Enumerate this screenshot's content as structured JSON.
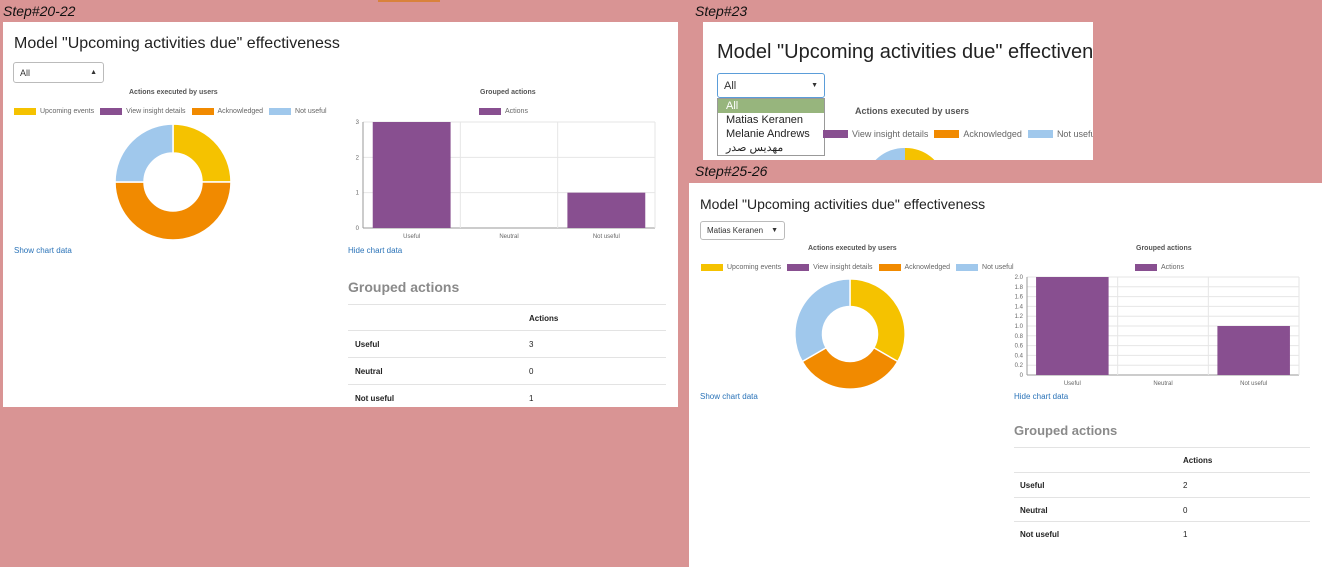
{
  "labels": {
    "step1": "Step#20-22",
    "step2": "Step#23",
    "step3": "Step#25-26"
  },
  "colors": {
    "upcoming": "#f5c200",
    "view": "#884f90",
    "ack": "#f18a00",
    "notuseful": "#a0c8ec",
    "bar": "#884f90",
    "link": "#2a73b8"
  },
  "panel1": {
    "title": "Model \"Upcoming activities due\" effectiveness",
    "select_value": "All",
    "donut_title": "Actions executed by users",
    "legend": [
      "Upcoming events",
      "View insight details",
      "Acknowledged",
      "Not useful"
    ],
    "show_link": "Show chart data",
    "bar_title": "Grouped actions",
    "bar_legend": "Actions",
    "hide_link": "Hide chart data",
    "grouped_title": "Grouped actions",
    "table_header": "Actions",
    "table_rows": [
      {
        "label": "Useful",
        "value": "3"
      },
      {
        "label": "Neutral",
        "value": "0"
      },
      {
        "label": "Not useful",
        "value": "1"
      }
    ]
  },
  "panel2": {
    "title": "Model \"Upcoming activities due\" effectiveness",
    "select_value": "All",
    "options": [
      "All",
      "Matias Keranen",
      "Melanie Andrews",
      "مهدیس صدر"
    ],
    "donut_title": "Actions executed by users",
    "legend": [
      "View insight details",
      "Acknowledged",
      "Not useful"
    ]
  },
  "panel3": {
    "title": "Model \"Upcoming activities due\" effectiveness",
    "select_value": "Matias Keranen",
    "donut_title": "Actions executed by users",
    "legend": [
      "Upcoming events",
      "View insight details",
      "Acknowledged",
      "Not useful"
    ],
    "show_link": "Show chart data",
    "bar_title": "Grouped actions",
    "bar_legend": "Actions",
    "hide_link": "Hide chart data",
    "grouped_title": "Grouped actions",
    "table_header": "Actions",
    "table_rows": [
      {
        "label": "Useful",
        "value": "2"
      },
      {
        "label": "Neutral",
        "value": "0"
      },
      {
        "label": "Not useful",
        "value": "1"
      }
    ]
  },
  "chart_data": [
    {
      "type": "pie",
      "title": "Actions executed by users",
      "labels": [
        "Upcoming events",
        "View insight details",
        "Acknowledged",
        "Not useful"
      ],
      "values": [
        1,
        0,
        2,
        1
      ]
    },
    {
      "type": "bar",
      "title": "Grouped actions",
      "categories": [
        "Useful",
        "Neutral",
        "Not useful"
      ],
      "series": [
        {
          "name": "Actions",
          "values": [
            3,
            0,
            1
          ]
        }
      ],
      "ylim": [
        0,
        3
      ],
      "yticks": [
        "0",
        "1",
        "2",
        "3"
      ]
    },
    {
      "type": "pie",
      "title": "Actions executed by users",
      "labels": [
        "Upcoming events",
        "View insight details",
        "Acknowledged",
        "Not useful"
      ],
      "values": [
        1,
        0,
        1,
        1
      ]
    },
    {
      "type": "bar",
      "title": "Grouped actions",
      "categories": [
        "Useful",
        "Neutral",
        "Not useful"
      ],
      "series": [
        {
          "name": "Actions",
          "values": [
            2,
            0,
            1
          ]
        }
      ],
      "ylim": [
        0,
        2
      ],
      "yticks": [
        "0",
        "0.2",
        "0.4",
        "0.6",
        "0.8",
        "1.0",
        "1.2",
        "1.4",
        "1.6",
        "1.8",
        "2.0"
      ]
    }
  ]
}
